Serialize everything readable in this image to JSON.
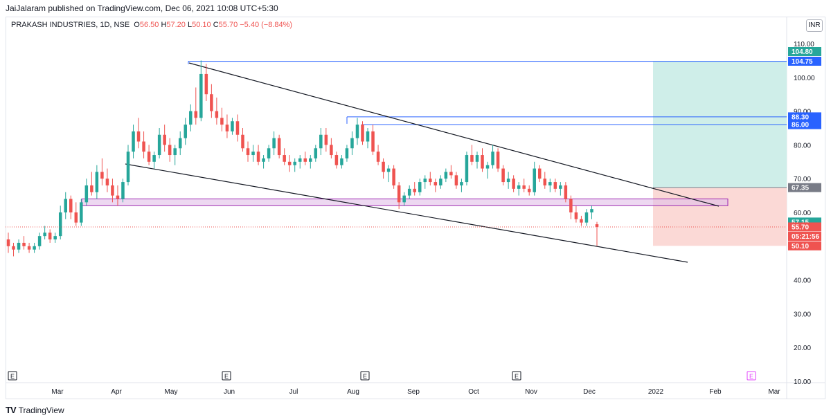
{
  "header": {
    "published": "JaiJalaram published on TradingView.com, Dec 06, 2021 10:08 UTC+5:30"
  },
  "legend": {
    "symbol": "PRAKASH INDUSTRIES, 1D, NSE",
    "o_label": "O",
    "o_value": "56.50",
    "h_label": "H",
    "h_value": "57.20",
    "l_label": "L",
    "l_value": "50.10",
    "c_label": "C",
    "c_value": "55.70",
    "change": "−5.40 (−8.84%)"
  },
  "currency": "INR",
  "footer": {
    "brand": "TradingView",
    "logo": "TV"
  },
  "colors": {
    "up": "#26a69a",
    "down": "#ef5350",
    "blue": "#2962ff",
    "purple": "#9c27b0",
    "green_zone": "#cfeee9",
    "red_zone": "#fbd9d6"
  },
  "chart_data": {
    "type": "candlestick",
    "y_axis": {
      "min": 10,
      "max": 110,
      "ticks": [
        "110.00",
        "100.00",
        "90.00",
        "80.00",
        "70.00",
        "60.00",
        "50.00",
        "40.00",
        "30.00",
        "20.00",
        "10.00"
      ]
    },
    "x_axis": {
      "labels": [
        "Mar",
        "Apr",
        "May",
        "Jun",
        "Jul",
        "Aug",
        "Sep",
        "Oct",
        "Nov",
        "Dec",
        "2022",
        "Feb",
        "Mar"
      ]
    },
    "price_labels": [
      {
        "text": "104.80",
        "value": 104.8,
        "color": "#26a69a"
      },
      {
        "text": "104.75",
        "value": 104.75,
        "color": "#2962ff"
      },
      {
        "text": "88.30",
        "value": 88.3,
        "color": "#2962ff"
      },
      {
        "text": "86.00",
        "value": 86.0,
        "color": "#2962ff"
      },
      {
        "text": "67.35",
        "value": 67.35,
        "color": "#787b86"
      },
      {
        "text": "57.15",
        "value": 57.15,
        "color": "#26a69a"
      },
      {
        "text": "55.70",
        "value": 55.7,
        "color": "#ef5350"
      },
      {
        "text": "05:21:56",
        "value": null,
        "color": "#ef5350"
      },
      {
        "text": "50.10",
        "value": 50.1,
        "color": "#ef5350"
      }
    ],
    "earnings_markers": [
      "E",
      "E",
      "E",
      "E",
      "E"
    ],
    "levels": {
      "high_line": 104.75,
      "resistance_1": 88.3,
      "resistance_2": 86.0,
      "target_zone": [
        67.35,
        104.75
      ],
      "stop_zone": [
        50.1,
        67.35
      ],
      "support_box": [
        62.0,
        64.0
      ],
      "last_price": 55.7
    },
    "candles": [
      [
        52,
        54,
        48,
        50
      ],
      [
        50,
        51,
        47,
        49
      ],
      [
        49,
        52,
        48,
        51
      ],
      [
        51,
        53,
        49,
        50
      ],
      [
        50,
        51,
        48,
        49
      ],
      [
        49,
        51,
        48,
        50
      ],
      [
        50,
        54,
        49,
        53
      ],
      [
        53,
        56,
        52,
        54
      ],
      [
        54,
        55,
        51,
        52
      ],
      [
        52,
        54,
        51,
        53
      ],
      [
        53,
        62,
        52,
        60
      ],
      [
        60,
        66,
        58,
        64
      ],
      [
        64,
        65,
        58,
        60
      ],
      [
        60,
        63,
        56,
        57
      ],
      [
        57,
        64,
        56,
        63
      ],
      [
        63,
        70,
        62,
        68
      ],
      [
        68,
        72,
        65,
        66
      ],
      [
        66,
        74,
        64,
        72
      ],
      [
        72,
        76,
        68,
        70
      ],
      [
        70,
        73,
        66,
        68
      ],
      [
        68,
        70,
        63,
        65
      ],
      [
        65,
        68,
        62,
        64
      ],
      [
        64,
        70,
        63,
        69
      ],
      [
        69,
        80,
        68,
        78
      ],
      [
        78,
        86,
        76,
        84
      ],
      [
        84,
        88,
        79,
        81
      ],
      [
        81,
        84,
        76,
        78
      ],
      [
        78,
        80,
        74,
        75
      ],
      [
        75,
        78,
        73,
        77
      ],
      [
        77,
        85,
        76,
        83
      ],
      [
        83,
        86,
        78,
        80
      ],
      [
        80,
        82,
        75,
        77
      ],
      [
        77,
        80,
        74,
        79
      ],
      [
        79,
        84,
        77,
        82
      ],
      [
        82,
        88,
        80,
        86
      ],
      [
        86,
        92,
        84,
        90
      ],
      [
        90,
        97,
        86,
        88
      ],
      [
        88,
        105,
        87,
        101
      ],
      [
        101,
        104,
        93,
        95
      ],
      [
        95,
        98,
        88,
        90
      ],
      [
        90,
        94,
        86,
        88
      ],
      [
        88,
        91,
        84,
        86
      ],
      [
        86,
        89,
        82,
        84
      ],
      [
        84,
        88,
        83,
        87
      ],
      [
        87,
        89,
        81,
        83
      ],
      [
        83,
        85,
        78,
        79
      ],
      [
        79,
        81,
        75,
        77
      ],
      [
        77,
        80,
        75,
        78
      ],
      [
        78,
        80,
        74,
        75
      ],
      [
        75,
        77,
        73,
        76
      ],
      [
        76,
        80,
        75,
        79
      ],
      [
        79,
        84,
        77,
        82
      ],
      [
        82,
        83,
        76,
        77
      ],
      [
        77,
        79,
        74,
        75
      ],
      [
        75,
        77,
        72,
        74
      ],
      [
        74,
        76,
        72,
        75
      ],
      [
        75,
        77,
        73,
        76
      ],
      [
        76,
        78,
        74,
        75
      ],
      [
        75,
        77,
        73,
        76
      ],
      [
        76,
        80,
        75,
        79
      ],
      [
        79,
        85,
        77,
        83
      ],
      [
        83,
        85,
        78,
        80
      ],
      [
        80,
        82,
        76,
        77
      ],
      [
        77,
        78,
        73,
        74
      ],
      [
        74,
        77,
        73,
        76
      ],
      [
        76,
        80,
        75,
        79
      ],
      [
        79,
        84,
        77,
        82
      ],
      [
        82,
        88,
        80,
        86
      ],
      [
        86,
        87,
        80,
        81
      ],
      [
        81,
        85,
        79,
        84
      ],
      [
        84,
        86,
        77,
        78
      ],
      [
        78,
        80,
        74,
        75
      ],
      [
        75,
        76,
        70,
        72
      ],
      [
        72,
        74,
        69,
        73
      ],
      [
        73,
        74,
        67,
        68
      ],
      [
        68,
        69,
        61,
        63
      ],
      [
        63,
        66,
        62,
        65
      ],
      [
        65,
        68,
        64,
        67
      ],
      [
        67,
        69,
        65,
        66
      ],
      [
        66,
        70,
        65,
        69
      ],
      [
        69,
        71,
        67,
        70
      ],
      [
        70,
        72,
        68,
        69
      ],
      [
        69,
        70,
        66,
        68
      ],
      [
        68,
        71,
        67,
        70
      ],
      [
        70,
        73,
        69,
        72
      ],
      [
        72,
        74,
        70,
        71
      ],
      [
        71,
        72,
        67,
        68
      ],
      [
        68,
        70,
        66,
        69
      ],
      [
        69,
        78,
        68,
        77
      ],
      [
        77,
        80,
        74,
        75
      ],
      [
        75,
        78,
        73,
        77
      ],
      [
        77,
        79,
        72,
        73
      ],
      [
        73,
        75,
        70,
        74
      ],
      [
        74,
        80,
        73,
        78
      ],
      [
        78,
        79,
        72,
        73
      ],
      [
        73,
        74,
        68,
        69
      ],
      [
        69,
        72,
        67,
        70
      ],
      [
        70,
        71,
        66,
        67
      ],
      [
        67,
        69,
        65,
        68
      ],
      [
        68,
        70,
        66,
        67
      ],
      [
        67,
        68,
        65,
        66
      ],
      [
        66,
        75,
        65,
        73
      ],
      [
        73,
        74,
        69,
        70
      ],
      [
        70,
        72,
        67,
        68
      ],
      [
        68,
        70,
        66,
        69
      ],
      [
        69,
        70,
        66,
        67
      ],
      [
        67,
        69,
        65,
        68
      ],
      [
        68,
        69,
        63,
        64
      ],
      [
        64,
        65,
        58,
        60
      ],
      [
        60,
        62,
        57,
        58
      ],
      [
        58,
        59,
        56,
        57
      ],
      [
        57,
        61,
        56,
        60
      ],
      [
        60,
        62,
        58,
        61
      ],
      [
        56.5,
        57.2,
        50.1,
        55.7
      ]
    ]
  }
}
